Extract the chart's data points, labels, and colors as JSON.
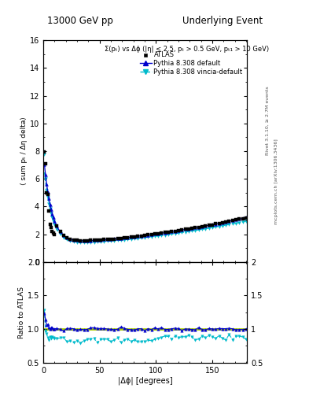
{
  "title_left": "13000 GeV pp",
  "title_right": "Underlying Event",
  "annotation": "Σ(pₜ) vs Δϕ (|η| < 2.5, pₜ > 0.5 GeV, pₜ₁ > 10 GeV)",
  "right_label1": "Rivet 3.1.10, ≥ 2.7M events",
  "right_label2": "mcplots.cern.ch [arXiv:1306.3436]",
  "xlabel": "|Δϕ| [degrees]",
  "ylabel_main": "⟨ sum pₜ / Δη delta⟩",
  "ylabel_ratio": "Ratio to ATLAS",
  "legend_data": "ATLAS",
  "legend_line1": "Pythia 8.308 default",
  "legend_line2": "Pythia 8.308 vincia-default",
  "xlim": [
    0,
    181
  ],
  "ylim_main": [
    0,
    16
  ],
  "ylim_ratio": [
    0.5,
    2.0
  ],
  "yticks_main": [
    0,
    2,
    4,
    6,
    8,
    10,
    12,
    14,
    16
  ],
  "yticks_ratio": [
    0.5,
    1.0,
    1.5,
    2.0
  ],
  "xticks": [
    0,
    50,
    100,
    150
  ],
  "color_data": "#000000",
  "color_line1": "#0000cc",
  "color_line2": "#00bbcc",
  "color_refline": "#aacc00",
  "bg_color": "#ffffff"
}
